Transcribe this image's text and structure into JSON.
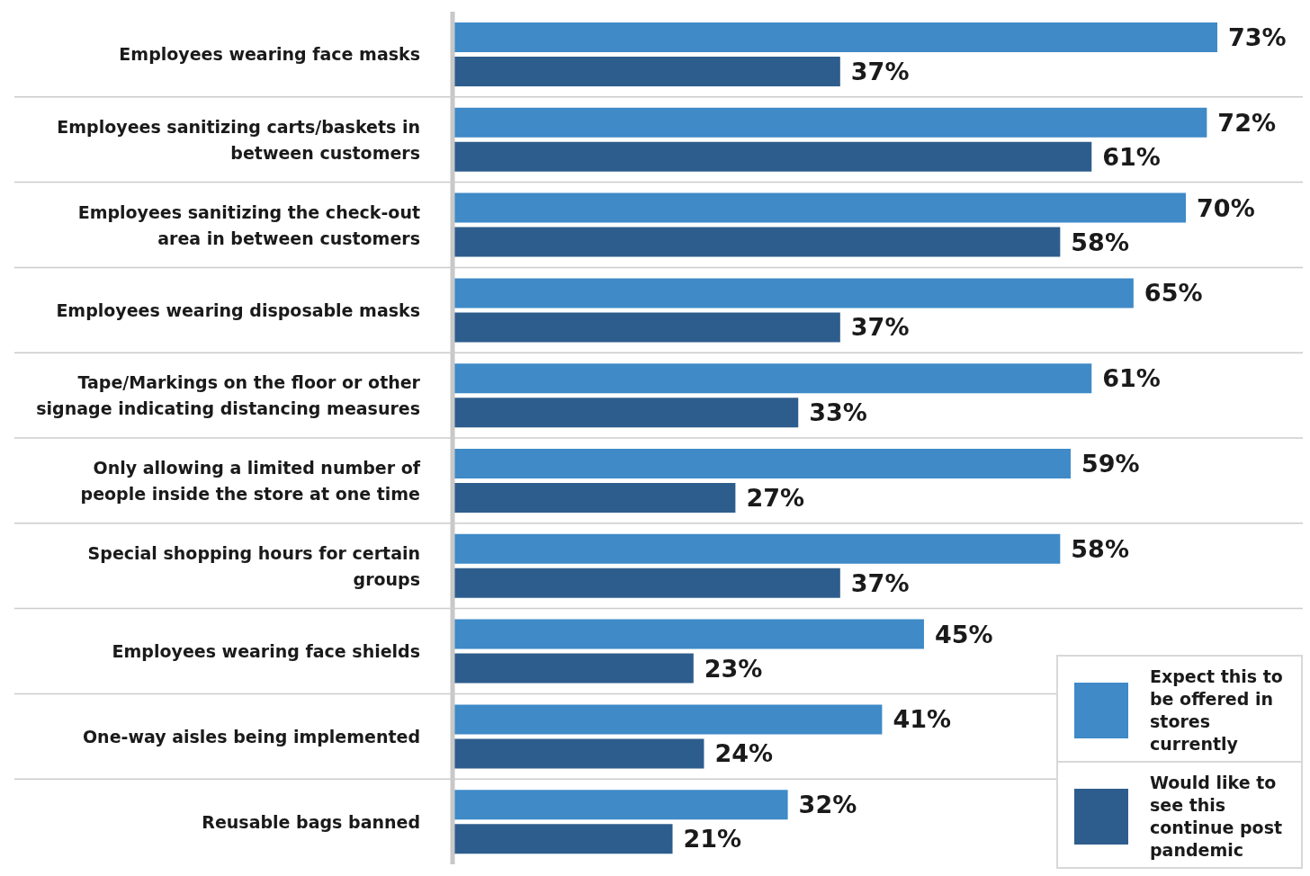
{
  "chart_data": {
    "type": "bar",
    "orientation": "horizontal",
    "legend": "bottom right",
    "grid": false,
    "tick_labels": "y",
    "categories": [
      "Employees wearing face masks",
      "Employees sanitizing carts/baskets in between customers",
      "Employees sanitizing the check-out area in between customers",
      "Employees wearing disposable masks",
      "Tape/Markings on the floor or other signage indicating distancing measures",
      "Only allowing a limited number of people inside the store at one time",
      "Special shopping hours for certain groups",
      "Employees wearing face shields",
      "One-way aisles being implemented",
      "Reusable bags banned"
    ],
    "series": [
      {
        "name": "Expect this to be offered in stores currently",
        "color": "#3f8ac7",
        "values": [
          73,
          72,
          70,
          65,
          61,
          59,
          58,
          45,
          41,
          32
        ],
        "value_labels": [
          "73%",
          "72%",
          "70%",
          "65%",
          "61%",
          "59%",
          "58%",
          "45%",
          "41%",
          "32%"
        ]
      },
      {
        "name": "Would like to see this continue post pandemic",
        "color": "#2d5d8c",
        "values": [
          37,
          61,
          58,
          37,
          33,
          27,
          37,
          23,
          24,
          21
        ],
        "value_labels": [
          "37%",
          "61%",
          "58%",
          "37%",
          "33%",
          "27%",
          "37%",
          "23%",
          "24%",
          "21%"
        ]
      }
    ]
  }
}
